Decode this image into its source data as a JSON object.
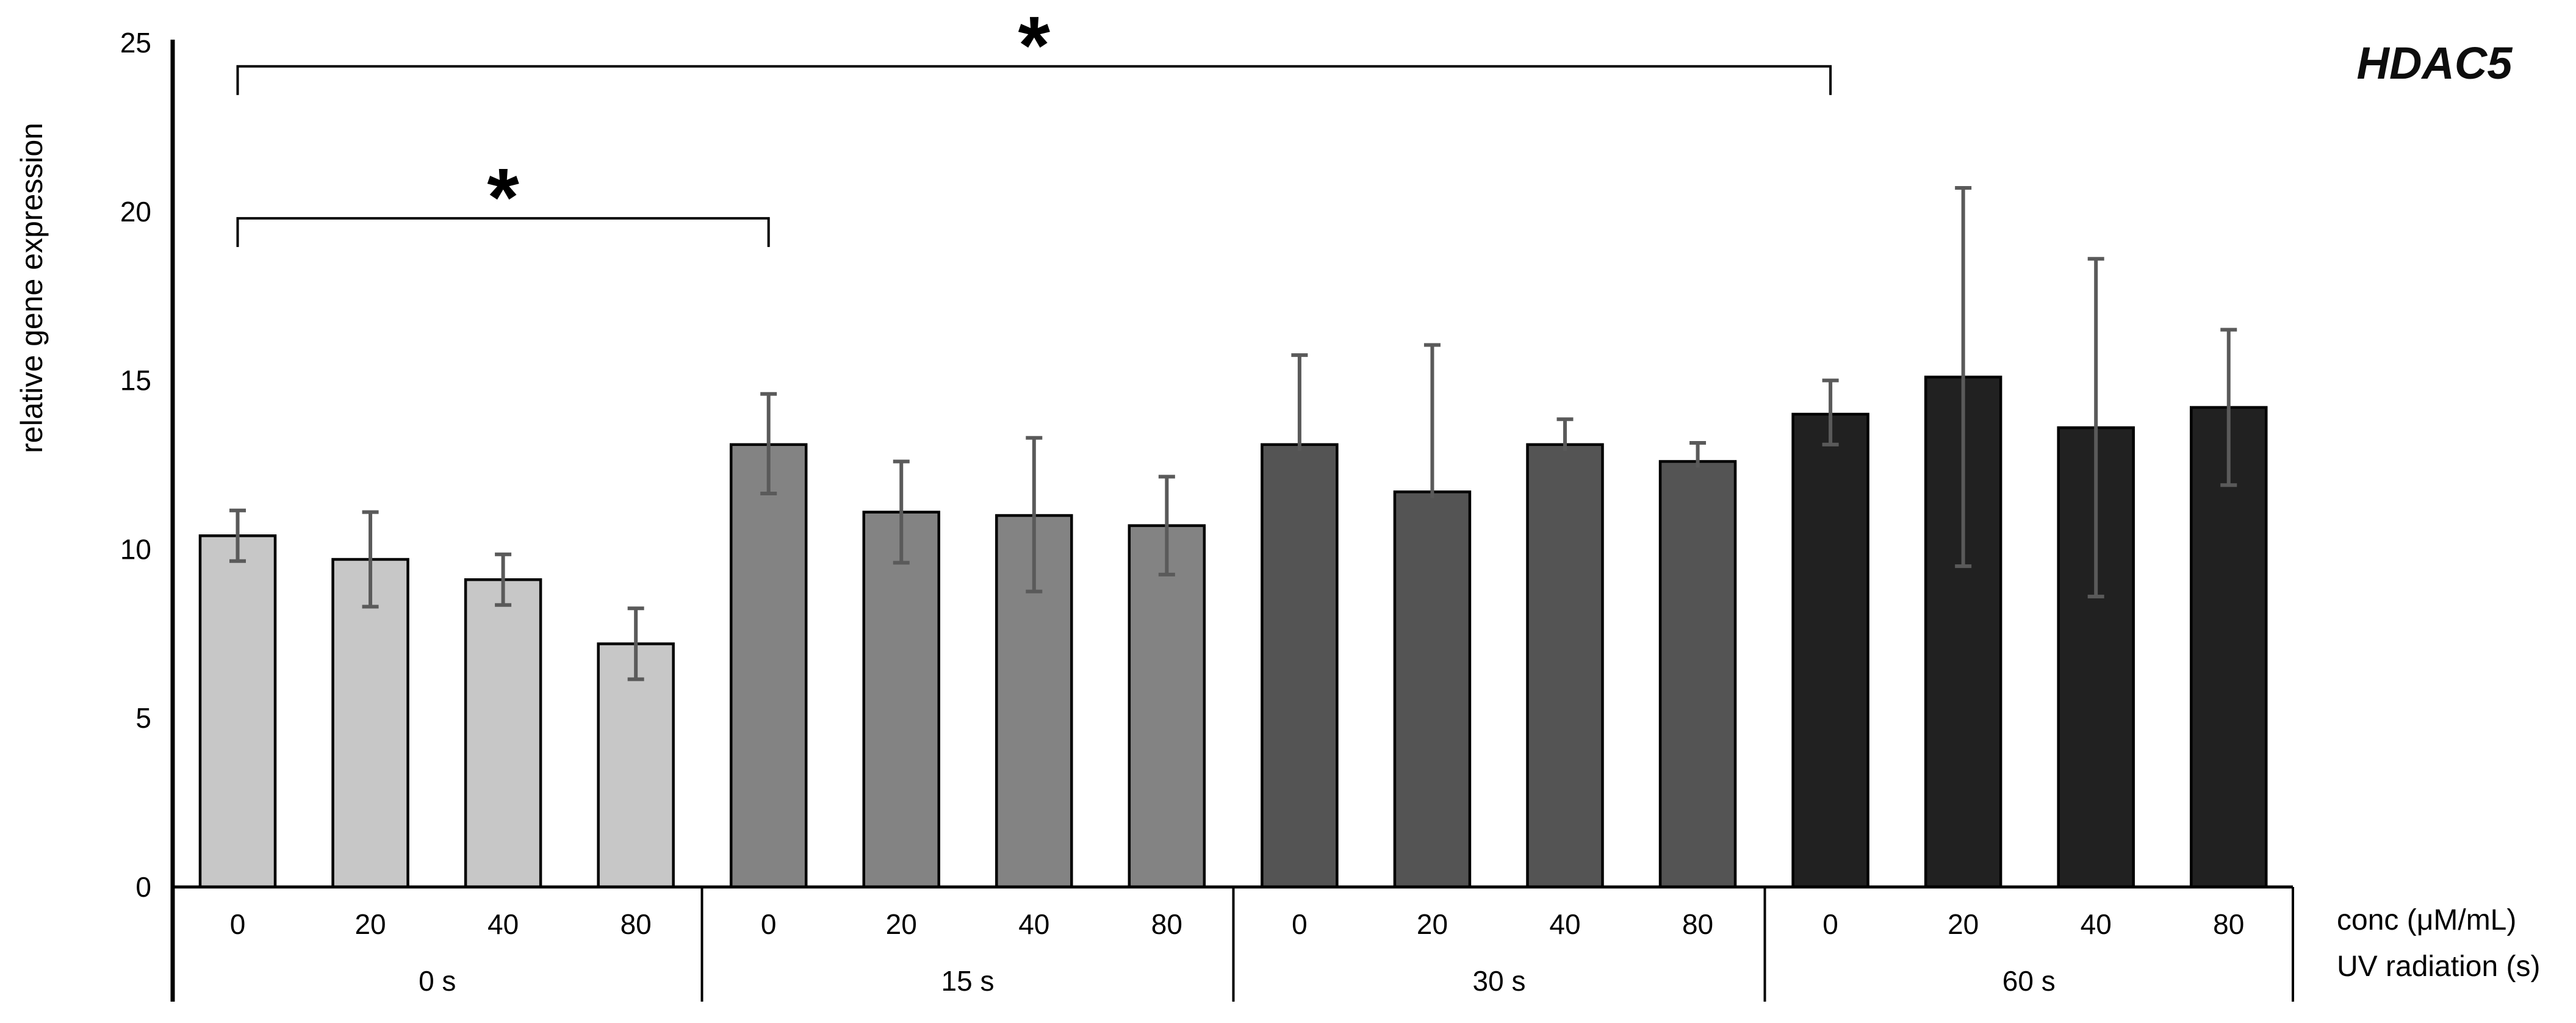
{
  "chart_data": {
    "type": "bar",
    "title": "HDAC5",
    "ylabel": "relative gene expression",
    "ylim": [
      0,
      25
    ],
    "yticks": [
      0,
      5,
      10,
      15,
      20,
      25
    ],
    "x_row_labels": [
      "conc (μM/mL)",
      "UV radiation (s)"
    ],
    "legend_position": "none",
    "grid": false,
    "colors": {
      "axis": "#000000",
      "bar_border": "#000000",
      "error_bar": "#5a5a5a",
      "background": "#ffffff"
    },
    "groups": [
      {
        "uv_label": "0 s",
        "color": "#c7c7c7",
        "bars": [
          {
            "conc": "0",
            "value": 10.4,
            "err_up": 0.75,
            "err_down": 0.75
          },
          {
            "conc": "20",
            "value": 9.7,
            "err_up": 1.4,
            "err_down": 1.4
          },
          {
            "conc": "40",
            "value": 9.1,
            "err_up": 0.75,
            "err_down": 0.75
          },
          {
            "conc": "80",
            "value": 7.2,
            "err_up": 1.05,
            "err_down": 1.05
          }
        ]
      },
      {
        "uv_label": "15 s",
        "color": "#838383",
        "bars": [
          {
            "conc": "0",
            "value": 13.1,
            "err_up": 1.5,
            "err_down": 1.45
          },
          {
            "conc": "20",
            "value": 11.1,
            "err_up": 1.5,
            "err_down": 1.5
          },
          {
            "conc": "40",
            "value": 11.0,
            "err_up": 2.3,
            "err_down": 2.25
          },
          {
            "conc": "80",
            "value": 10.7,
            "err_up": 1.45,
            "err_down": 1.45
          }
        ]
      },
      {
        "uv_label": "30 s",
        "color": "#545454",
        "bars": [
          {
            "conc": "0",
            "value": 13.1,
            "err_up": 2.65,
            "err_down": null
          },
          {
            "conc": "20",
            "value": 11.7,
            "err_up": 4.35,
            "err_down": null
          },
          {
            "conc": "40",
            "value": 13.1,
            "err_up": 0.75,
            "err_down": null
          },
          {
            "conc": "80",
            "value": 12.6,
            "err_up": 0.55,
            "err_down": null
          }
        ]
      },
      {
        "uv_label": "60 s",
        "color": "#212121",
        "bars": [
          {
            "conc": "0",
            "value": 14.0,
            "err_up": 1.0,
            "err_down": 0.9
          },
          {
            "conc": "20",
            "value": 15.1,
            "err_up": 5.6,
            "err_down": 5.6
          },
          {
            "conc": "40",
            "value": 13.6,
            "err_up": 5.0,
            "err_down": 5.0
          },
          {
            "conc": "80",
            "value": 14.2,
            "err_up": 2.3,
            "err_down": 2.3
          }
        ]
      }
    ],
    "significance": [
      {
        "label": "*",
        "from_group": 0,
        "from_bar": 0,
        "to_group": 3,
        "to_bar": 0,
        "level": 24.3
      },
      {
        "label": "*",
        "from_group": 0,
        "from_bar": 0,
        "to_group": 1,
        "to_bar": 0,
        "level": 19.8
      }
    ]
  }
}
